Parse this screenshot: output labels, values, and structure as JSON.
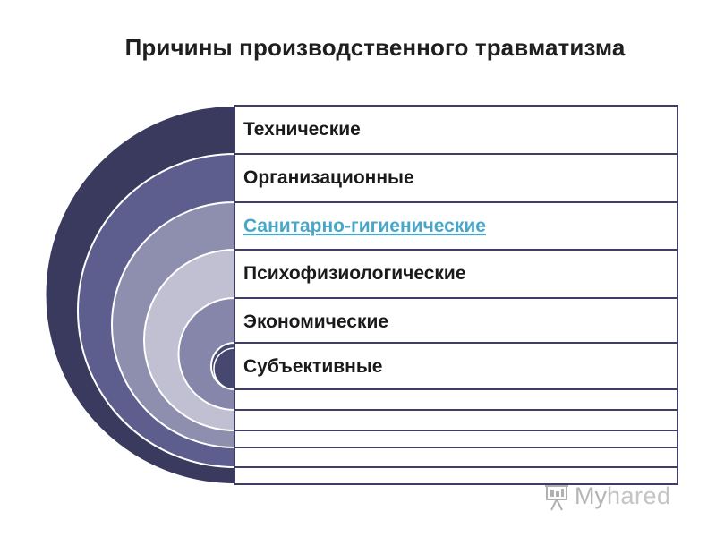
{
  "title": "Причины производственного травматизма",
  "categories": [
    {
      "label": "Технические",
      "ring_color": "#3a3a5e",
      "text_color": "#1a1a1a"
    },
    {
      "label": "Организационные",
      "ring_color": "#5d5e8e",
      "text_color": "#1a1a1a"
    },
    {
      "label": "Санитарно-гигиенические",
      "ring_color": "#8e8eaf",
      "text_color": "#4aa6c8",
      "link": true
    },
    {
      "label": "Психофизиологические",
      "ring_color": "#c0c0d2",
      "text_color": "#1a1a1a"
    },
    {
      "label": "Экономические",
      "ring_color": "#8586a9",
      "text_color": "#1a1a1a"
    },
    {
      "label": "Субъективные",
      "ring_color": "#474870",
      "text_color": "#1a1a1a"
    }
  ],
  "colors": {
    "band_border": "#3d3d66",
    "background": "#ffffff"
  },
  "watermark": {
    "prefix": "My",
    "suffix": "hared",
    "icon": "presentation-board-icon"
  }
}
